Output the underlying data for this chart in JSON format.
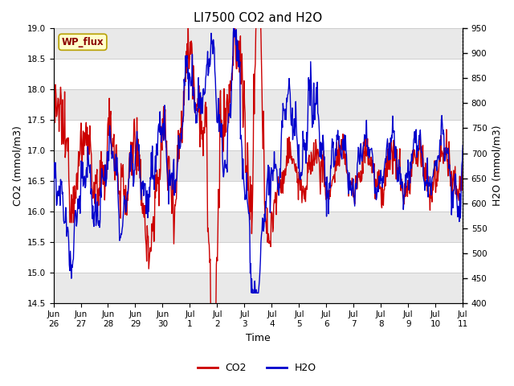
{
  "title": "LI7500 CO2 and H2O",
  "xlabel": "Time",
  "ylabel_left": "CO2 (mmol/m3)",
  "ylabel_right": "H2O (mmol/m3)",
  "ylim_left": [
    14.5,
    19.0
  ],
  "ylim_right": [
    400,
    950
  ],
  "yticks_left": [
    14.5,
    15.0,
    15.5,
    16.0,
    16.5,
    17.0,
    17.5,
    18.0,
    18.5,
    19.0
  ],
  "yticks_right": [
    400,
    450,
    500,
    550,
    600,
    650,
    700,
    750,
    800,
    850,
    900,
    950
  ],
  "xtick_labels": [
    "Jun\n26",
    "Jun\n27",
    "Jun\n28",
    "Jun\n29",
    "Jun\n30",
    "Jul\n1",
    "Jul\n2",
    "Jul\n3",
    "Jul\n4",
    "Jul\n5",
    "Jul\n6",
    "Jul\n7",
    "Jul\n8",
    "Jul\n9",
    "Jul\n10",
    "Jul\n11"
  ],
  "annotation_text": "WP_flux",
  "co2_color": "#cc0000",
  "h2o_color": "#0000cc",
  "background_color": "#ffffff",
  "grid_color": "#c8c8c8",
  "title_fontsize": 11,
  "axis_label_fontsize": 9,
  "tick_fontsize": 7.5,
  "legend_fontsize": 9,
  "line_width": 1.0,
  "num_points": 800,
  "gray_band_color": "#e0e0e0",
  "gray_band_alpha": 0.7
}
